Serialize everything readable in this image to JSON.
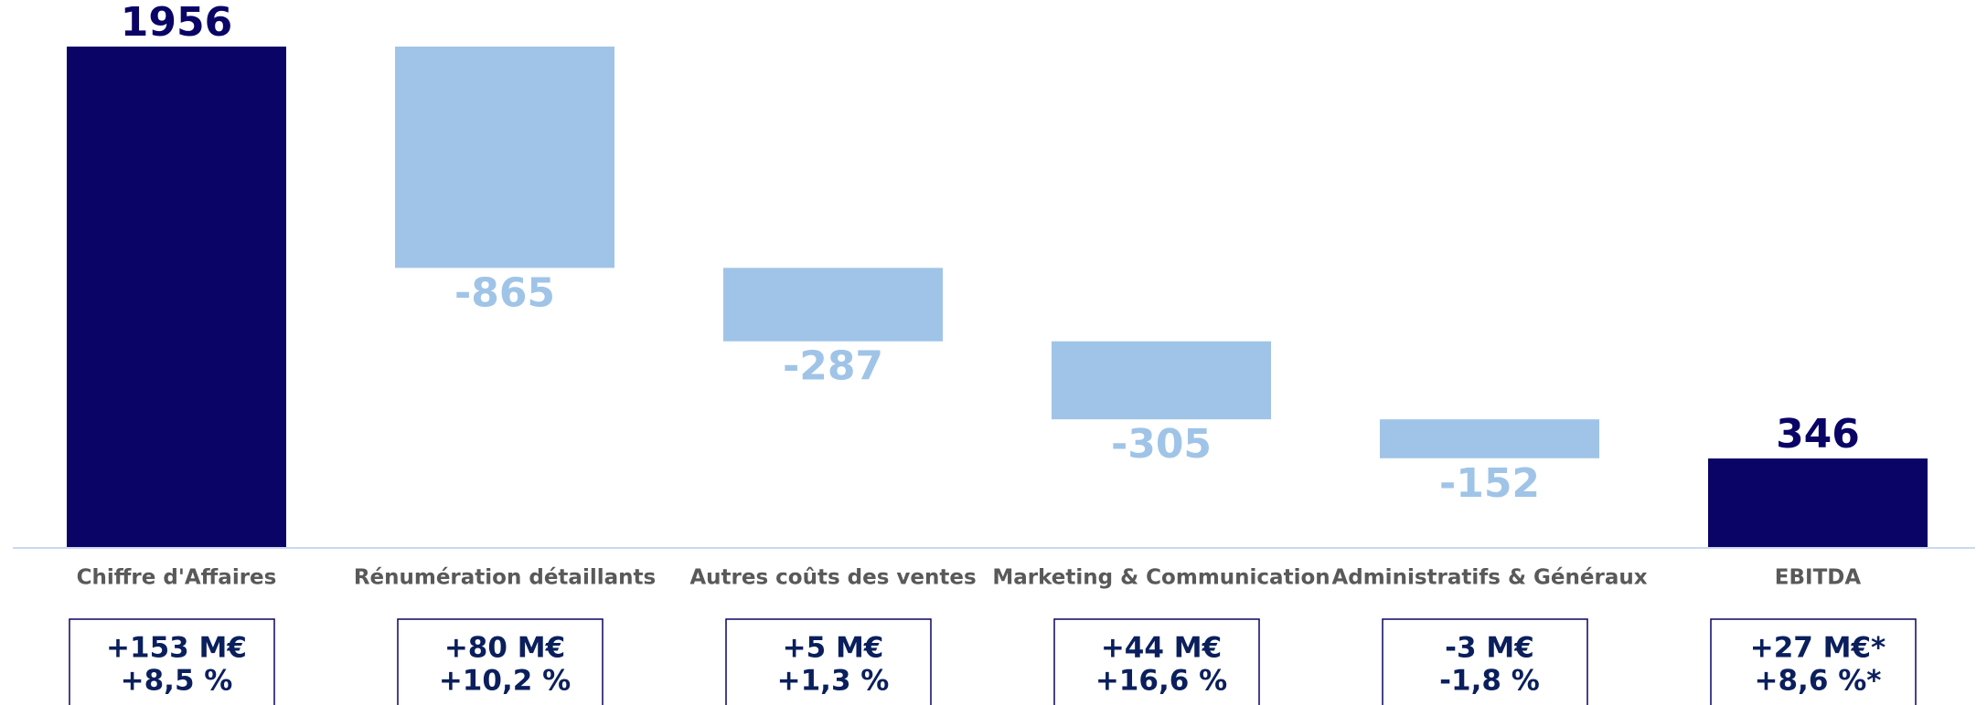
{
  "chart_data": {
    "type": "waterfall",
    "categories": [
      "Chiffre d'Affaires",
      "Rénumération détaillants",
      "Autres coûts des ventes",
      "Marketing & Communication",
      "Administratifs & Généraux",
      "EBITDA"
    ],
    "values": [
      1956,
      -865,
      -287,
      -305,
      -152,
      346
    ],
    "is_total": [
      true,
      false,
      false,
      false,
      false,
      true
    ],
    "total_color": "#0a0466",
    "delta_color": "#9fc4e7",
    "annotations": [
      [
        "+153 M€",
        "+8,5 %"
      ],
      [
        "+80 M€",
        "+10,2 %"
      ],
      [
        "+5 M€",
        "+1,3 %"
      ],
      [
        "+44 M€",
        "+16,6 %"
      ],
      [
        "-3 M€",
        "-1,8 %"
      ],
      [
        "+27 M€*",
        "+8,6 %*"
      ]
    ]
  }
}
